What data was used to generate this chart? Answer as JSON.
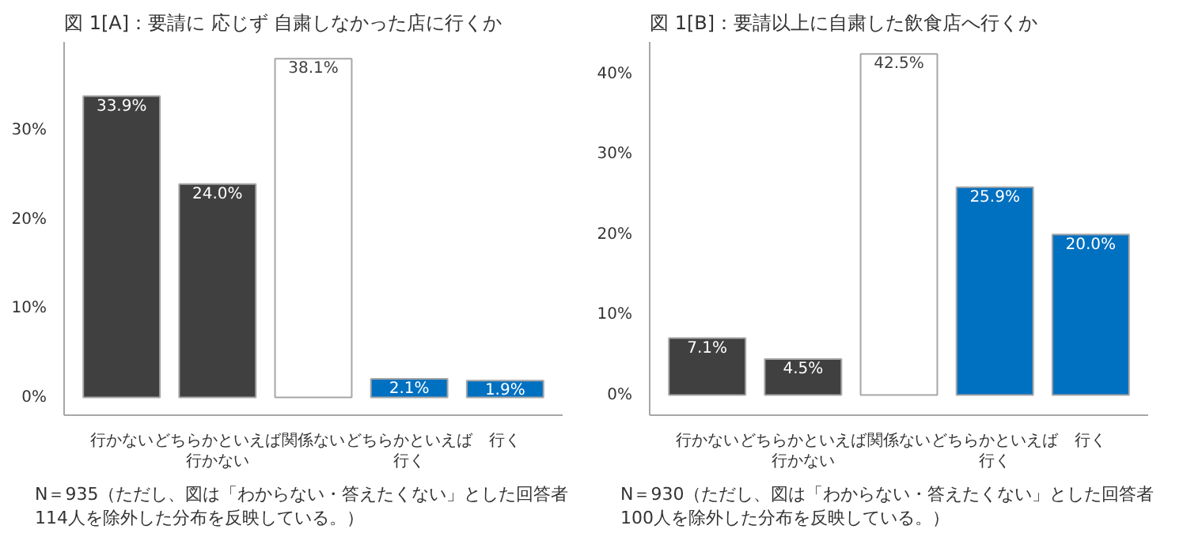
{
  "chart_data": [
    {
      "type": "bar",
      "title": "図 1[A]：要請に 応じず 自粛しなかった店に行くか",
      "categories": [
        "行かない",
        "どちらかといえば行かない",
        "関係ない",
        "どちらかといえば行く",
        "行く"
      ],
      "values": [
        33.9,
        24.0,
        38.1,
        2.1,
        1.9
      ],
      "colors": [
        "#404040",
        "#404040",
        "#ffffff",
        "#0070c0",
        "#0070c0"
      ],
      "data_labels": true,
      "value_labels": [
        "33.9%",
        "24.0%",
        "38.1%",
        "2.1%",
        "1.9%"
      ],
      "ylim": [
        -2,
        40
      ],
      "yticks": [
        {
          "value": 0,
          "label": "0%"
        },
        {
          "value": 10,
          "label": "10%"
        },
        {
          "value": 20,
          "label": "20%"
        },
        {
          "value": 30,
          "label": "30%"
        }
      ],
      "grid": false,
      "annotations": [
        "N＝935（ただし、図は「わからない・答えたくない」とした回答者114人を除外した分布を反映している。）"
      ]
    },
    {
      "type": "bar",
      "title": "図 1[B]：要請以上に自粛した飲食店へ行くか",
      "categories": [
        "行かない",
        "どちらかといえば行かない",
        "関係ない",
        "どちらかといえば行く",
        "行く"
      ],
      "values": [
        7.1,
        4.5,
        42.5,
        25.9,
        20.0
      ],
      "colors": [
        "#404040",
        "#404040",
        "#ffffff",
        "#0070c0",
        "#0070c0"
      ],
      "data_labels": true,
      "value_labels": [
        "7.1%",
        "4.5%",
        "42.5%",
        "25.9%",
        "20.0%"
      ],
      "ylim": [
        -2.5,
        44
      ],
      "yticks": [
        {
          "value": 0,
          "label": "0%"
        },
        {
          "value": 10,
          "label": "10%"
        },
        {
          "value": 20,
          "label": "20%"
        },
        {
          "value": 30,
          "label": "30%"
        },
        {
          "value": 40,
          "label": "40%"
        }
      ],
      "grid": false,
      "annotations": [
        "N＝930（ただし、図は「わからない・答えたくない」とした回答者100人を除外した分布を反映している。）"
      ]
    }
  ]
}
